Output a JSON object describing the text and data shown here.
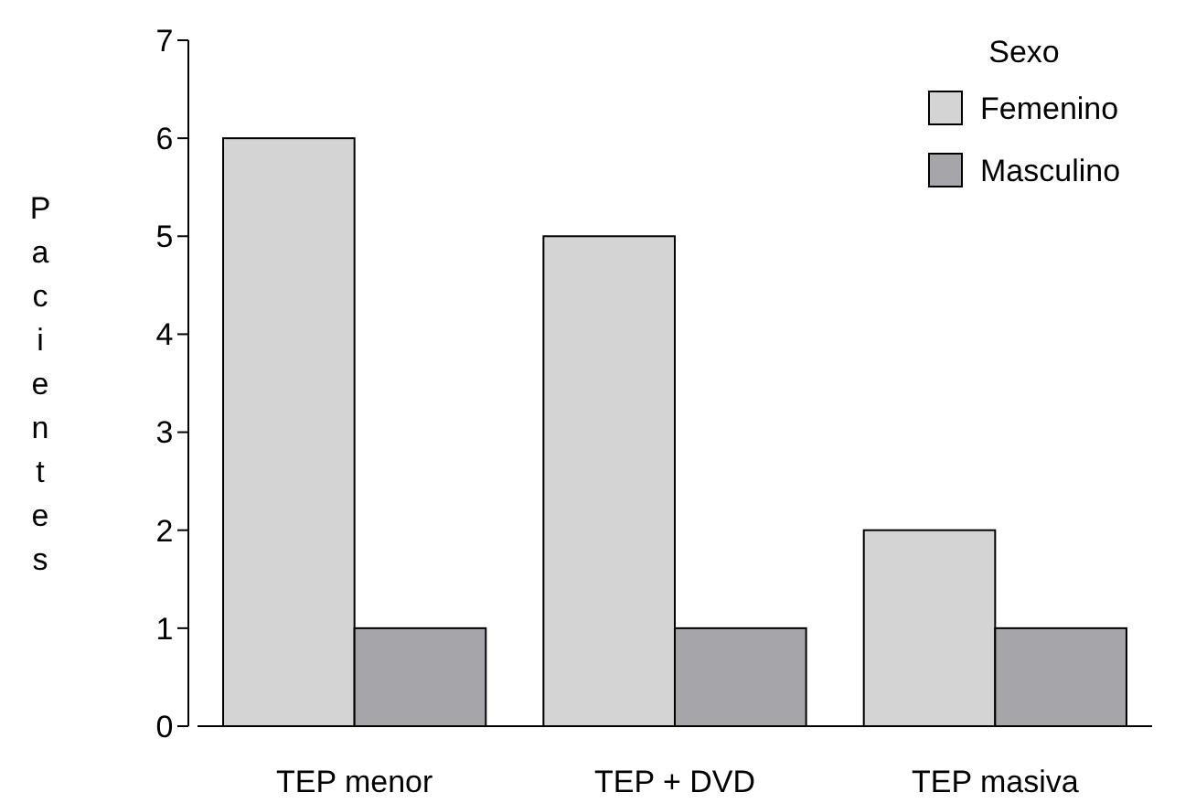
{
  "chart_data": {
    "type": "bar",
    "ylabel": "Pacientes",
    "legend_title": "Sexo",
    "categories": [
      "TEP menor",
      "TEP + DVD",
      "TEP masiva"
    ],
    "series": [
      {
        "name": "Femenino",
        "color": "#d4d4d4",
        "values": [
          6,
          5,
          2
        ]
      },
      {
        "name": "Masculino",
        "color": "#a6a6aa",
        "values": [
          1,
          1,
          1
        ]
      }
    ],
    "ylim": [
      0,
      7
    ],
    "yticks": [
      0,
      1,
      2,
      3,
      4,
      5,
      6,
      7
    ],
    "legend": "top right",
    "grid": false
  }
}
